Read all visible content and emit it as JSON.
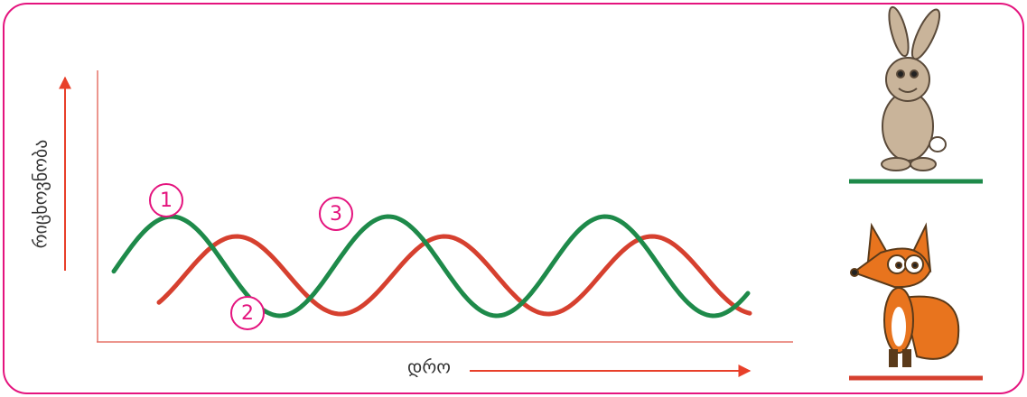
{
  "y_axis_label": "რიცხოვნობა",
  "x_axis_label": "დრო",
  "markers": [
    "1",
    "2",
    "3"
  ]
}
